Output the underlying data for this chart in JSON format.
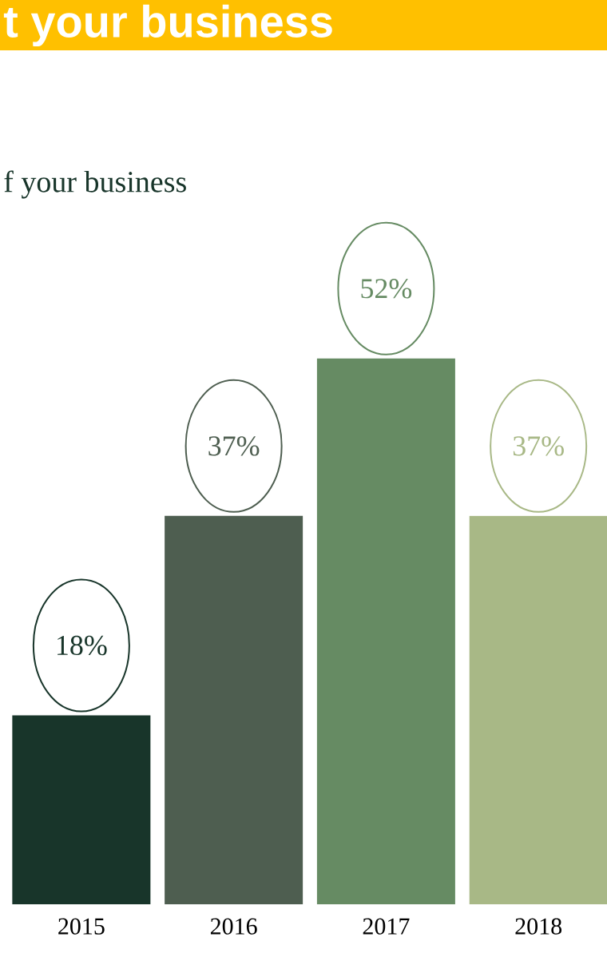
{
  "chart_data": {
    "type": "bar",
    "title": "t your business",
    "subtitle": "f your business",
    "categories": [
      "2015",
      "2016",
      "2017",
      "2018"
    ],
    "values": [
      18,
      37,
      52,
      37
    ],
    "colors": [
      "#18352a",
      "#4e5e50",
      "#668b63",
      "#a8b886"
    ],
    "value_labels": [
      "18%",
      "37%",
      "52%",
      "37%"
    ]
  }
}
